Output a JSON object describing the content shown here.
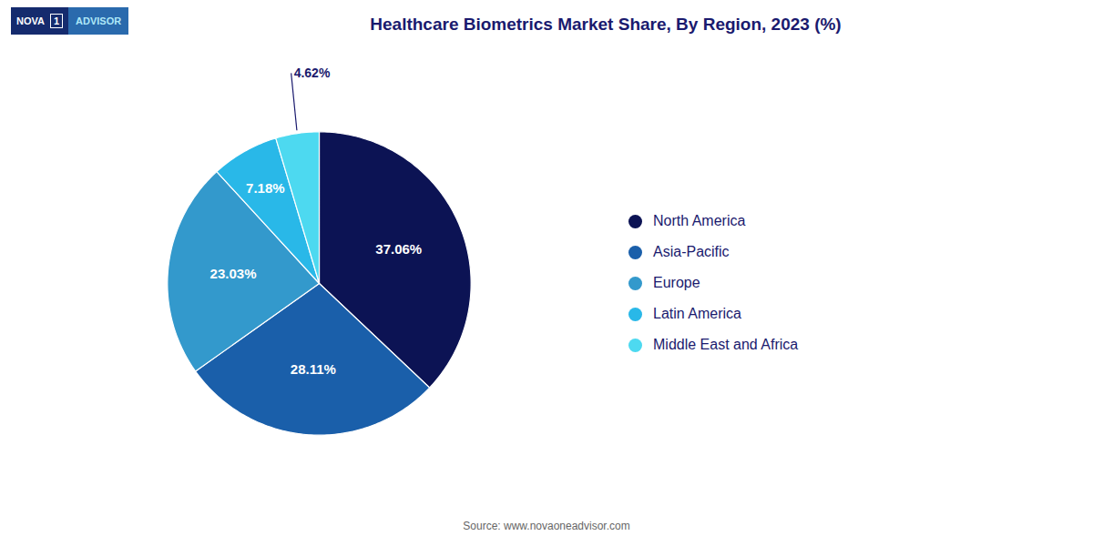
{
  "chart_data": {
    "type": "pie",
    "title": "Healthcare Biometrics Market Share, By Region, 2023 (%)",
    "categories": [
      "North America",
      "Asia-Pacific",
      "Europe",
      "Latin America",
      "Middle East and Africa"
    ],
    "values": [
      37.06,
      28.11,
      23.03,
      7.18,
      4.62
    ],
    "value_labels": [
      "37.06%",
      "28.11%",
      "23.03%",
      "7.18%",
      "4.62%"
    ],
    "colors": [
      "#0c1354",
      "#1a5faa",
      "#3399cc",
      "#29b8e8",
      "#4dd9f0"
    ],
    "data_labels": true,
    "legend": "right",
    "annotations": [
      "Source: www.novaoneadvisor.com",
      "NOVA",
      "1",
      "ADVISOR"
    ]
  }
}
